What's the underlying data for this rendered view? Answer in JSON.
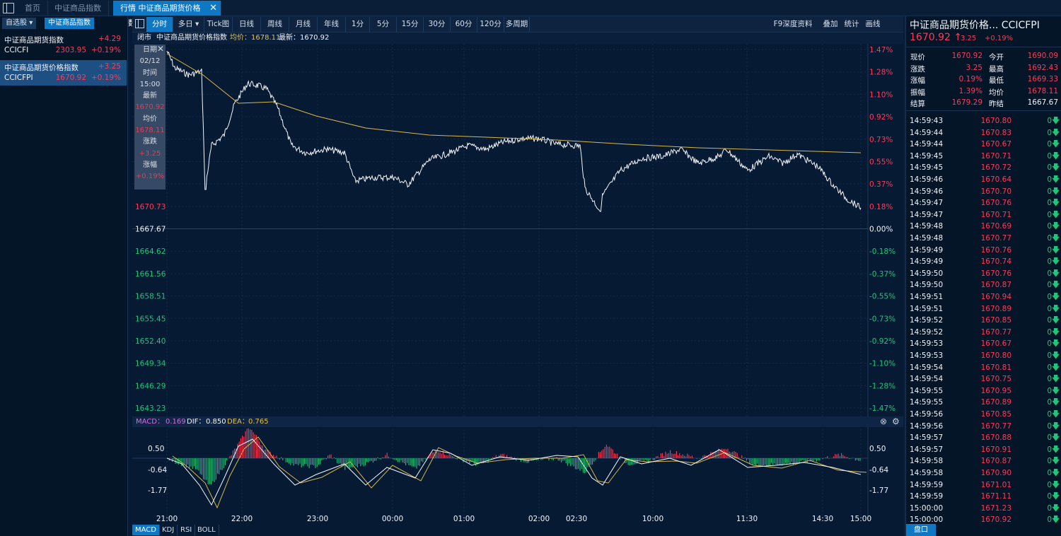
{
  "top_tabs": [
    {
      "label": "首页"
    },
    {
      "label": "中证商品指数"
    },
    {
      "label": "行情  中证商品期货价格指数"
    }
  ],
  "left_panel": {
    "tabs": [
      "自选股",
      "中证商品指数"
    ],
    "items": [
      {
        "name": "中证商品期货指数",
        "code": "CCICFI",
        "change": "+4.29",
        "price": "2303.95",
        "pct": "+0.19%"
      },
      {
        "name": "中证商品期货价格指数",
        "code": "CCICFPI",
        "change": "+3.25",
        "price": "1670.92",
        "pct": "+0.19%"
      }
    ]
  },
  "toolbar": {
    "left": [
      "分时",
      "多日 ▾",
      "Tick图",
      "日线",
      "周线",
      "月线",
      "年线",
      "1分",
      "5分",
      "15分",
      "30分",
      "60分",
      "120分",
      "多周期"
    ],
    "right": [
      "F9深度资料",
      "叠加",
      "统计",
      "画线"
    ]
  },
  "info_line": {
    "status": "闭市",
    "name": "中证商品期货价格指数",
    "avg": "均价：1678.11",
    "latest": "最新：1670.92"
  },
  "tooltip": {
    "date_label": "日期",
    "date": "02/12",
    "time_label": "时间",
    "time": "15:00",
    "latest_label": "最新",
    "latest": "1670.92",
    "avg_label": "均价",
    "avg": "1678.11",
    "chg_label": "涨跌",
    "chg": "+3.25",
    "pct_label": "涨幅",
    "pct": "+0.19%"
  },
  "price_axis": {
    "left": [
      "1670.73",
      "1667.67",
      "1664.62",
      "1661.56",
      "1658.51",
      "1655.45",
      "1652.40",
      "1649.34",
      "1646.29",
      "1643.23"
    ],
    "right": [
      "1.47%",
      "1.28%",
      "1.10%",
      "0.92%",
      "0.73%",
      "0.55%",
      "0.37%",
      "0.18%",
      "0.00%",
      "-0.18%",
      "-0.37%",
      "-0.55%",
      "-0.73%",
      "-0.92%",
      "-1.10%",
      "-1.28%",
      "-1.47%"
    ]
  },
  "macd": {
    "label": "MACD：",
    "macd": "0.169",
    "dif_label": "DIF：",
    "dif": "0.850",
    "dea_label": "DEA：",
    "dea": "0.765",
    "axis": [
      "0.50",
      "-0.64",
      "-1.77"
    ]
  },
  "time_axis": [
    "21:00",
    "22:00",
    "23:00",
    "00:00",
    "01:00",
    "02:00",
    "02:30",
    "10:00",
    "11:30",
    "14:30",
    "15:00"
  ],
  "bottom_tabs": [
    "MACD",
    "KDJ",
    "RSI",
    "BOLL"
  ],
  "right_panel": {
    "title": "中证商品期货价格...  CCICFPI",
    "price": "1670.92",
    "change": "3.25",
    "pct": "+0.19%",
    "stats": [
      {
        "l": "现价",
        "v": "1670.92",
        "l2": "今开",
        "v2": "1690.09"
      },
      {
        "l": "涨跌",
        "v": "3.25",
        "l2": "最高",
        "v2": "1692.43"
      },
      {
        "l": "涨幅",
        "v": "0.19%",
        "l2": "最低",
        "v2": "1669.33"
      },
      {
        "l": "振幅",
        "v": "1.39%",
        "l2": "均价",
        "v2": "1678.11"
      },
      {
        "l": "结算",
        "v": "1679.29",
        "l2": "昨结",
        "v2": "1667.67"
      }
    ],
    "ticks": [
      [
        "14:59:43",
        "1670.80"
      ],
      [
        "14:59:44",
        "1670.83"
      ],
      [
        "14:59:44",
        "1670.67"
      ],
      [
        "14:59:45",
        "1670.71"
      ],
      [
        "14:59:45",
        "1670.72"
      ],
      [
        "14:59:46",
        "1670.64"
      ],
      [
        "14:59:46",
        "1670.70"
      ],
      [
        "14:59:47",
        "1670.76"
      ],
      [
        "14:59:47",
        "1670.71"
      ],
      [
        "14:59:48",
        "1670.69"
      ],
      [
        "14:59:48",
        "1670.77"
      ],
      [
        "14:59:49",
        "1670.76"
      ],
      [
        "14:59:49",
        "1670.74"
      ],
      [
        "14:59:50",
        "1670.76"
      ],
      [
        "14:59:50",
        "1670.87"
      ],
      [
        "14:59:51",
        "1670.94"
      ],
      [
        "14:59:51",
        "1670.89"
      ],
      [
        "14:59:52",
        "1670.85"
      ],
      [
        "14:59:52",
        "1670.77"
      ],
      [
        "14:59:53",
        "1670.67"
      ],
      [
        "14:59:53",
        "1670.80"
      ],
      [
        "14:59:54",
        "1670.81"
      ],
      [
        "14:59:54",
        "1670.75"
      ],
      [
        "14:59:55",
        "1670.95"
      ],
      [
        "14:59:55",
        "1670.89"
      ],
      [
        "14:59:56",
        "1670.85"
      ],
      [
        "14:59:56",
        "1670.77"
      ],
      [
        "14:59:57",
        "1670.88"
      ],
      [
        "14:59:57",
        "1670.91"
      ],
      [
        "14:59:58",
        "1670.87"
      ],
      [
        "14:59:58",
        "1670.90"
      ],
      [
        "14:59:59",
        "1671.01"
      ],
      [
        "14:59:59",
        "1671.11"
      ],
      [
        "15:00:00",
        "1671.23"
      ],
      [
        "15:00:00",
        "1670.92"
      ]
    ],
    "tick_volume": "0",
    "disk_button": "盘口"
  },
  "colors": {
    "up": "#ff3b55",
    "down": "#22c47a",
    "avg_line": "#d8b74a",
    "price_line": "#f4f6f9",
    "accent": "#0f78c4"
  }
}
